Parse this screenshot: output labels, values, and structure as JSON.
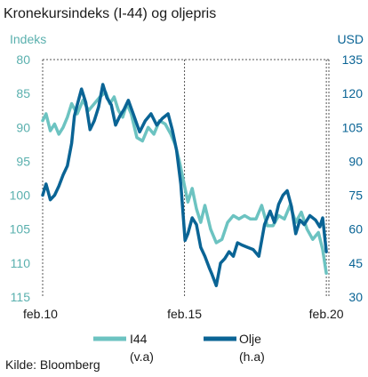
{
  "chart_data": {
    "type": "line",
    "title": "Kronekursindeks (I-44) og oljepris",
    "source": "Kilde: Bloomberg",
    "left_axis": {
      "label": "Indeks",
      "inverted": true,
      "range": [
        80,
        115
      ],
      "ticks": [
        "80",
        "85",
        "90",
        "95",
        "100",
        "105",
        "110",
        "115"
      ]
    },
    "right_axis": {
      "label": "USD",
      "range": [
        30,
        135
      ],
      "ticks": [
        "135",
        "120",
        "105",
        "90",
        "75",
        "60",
        "45",
        "30"
      ]
    },
    "x_axis": {
      "range": [
        2010.08,
        2020.17
      ],
      "ticks": [
        {
          "value": 2010.08,
          "label": "feb.10"
        },
        {
          "value": 2015.08,
          "label": "feb.15"
        },
        {
          "value": 2020.08,
          "label": "feb.20"
        }
      ]
    },
    "grid": "vertical dashed",
    "colors": {
      "i44": "#6cc3c1",
      "oil": "#0a6495",
      "left_axis": "#5ab0ae",
      "right_axis": "#0a6495"
    },
    "series": [
      {
        "name": "I44",
        "legend_label": "I44",
        "legend_note": "(v.a)",
        "axis": "left",
        "x": [
          2010.08,
          2010.2,
          2010.35,
          2010.5,
          2010.65,
          2010.8,
          2010.95,
          2011.1,
          2011.3,
          2011.5,
          2011.7,
          2011.9,
          2012.1,
          2012.3,
          2012.45,
          2012.6,
          2012.75,
          2012.9,
          2013.05,
          2013.2,
          2013.4,
          2013.6,
          2013.8,
          2014.0,
          2014.2,
          2014.4,
          2014.6,
          2014.75,
          2014.9,
          2015.05,
          2015.2,
          2015.35,
          2015.5,
          2015.65,
          2015.8,
          2016.0,
          2016.2,
          2016.4,
          2016.6,
          2016.8,
          2017.0,
          2017.2,
          2017.4,
          2017.6,
          2017.8,
          2018.0,
          2018.2,
          2018.4,
          2018.6,
          2018.8,
          2019.0,
          2019.2,
          2019.4,
          2019.6,
          2019.8,
          2019.95,
          2020.08
        ],
        "values": [
          89,
          88,
          90.5,
          89.5,
          91,
          90,
          88.5,
          86.5,
          88,
          86,
          87.5,
          86.5,
          85.5,
          84.8,
          86.5,
          85.5,
          87.5,
          88.5,
          86.5,
          88,
          91.5,
          92,
          90,
          91,
          89,
          89.5,
          91,
          92.5,
          95,
          98,
          101,
          99,
          102,
          104,
          101.5,
          105,
          107,
          106.5,
          104,
          103,
          103.5,
          103,
          103.5,
          103.5,
          101.5,
          104.5,
          104.5,
          103,
          103.5,
          101.5,
          104,
          102.5,
          105,
          106.5,
          105.5,
          108,
          111.5
        ]
      },
      {
        "name": "Olje",
        "legend_label": "Olje",
        "legend_note": "(h.a)",
        "axis": "right",
        "x": [
          2010.08,
          2010.2,
          2010.35,
          2010.5,
          2010.65,
          2010.8,
          2010.95,
          2011.1,
          2011.2,
          2011.3,
          2011.45,
          2011.6,
          2011.75,
          2011.9,
          2012.05,
          2012.2,
          2012.35,
          2012.5,
          2012.65,
          2012.8,
          2012.95,
          2013.1,
          2013.3,
          2013.5,
          2013.7,
          2013.9,
          2014.1,
          2014.3,
          2014.5,
          2014.65,
          2014.8,
          2014.95,
          2015.1,
          2015.2,
          2015.35,
          2015.5,
          2015.65,
          2015.8,
          2015.95,
          2016.05,
          2016.2,
          2016.35,
          2016.5,
          2016.65,
          2016.8,
          2016.95,
          2017.1,
          2017.3,
          2017.5,
          2017.7,
          2017.9,
          2018.1,
          2018.25,
          2018.4,
          2018.55,
          2018.7,
          2018.85,
          2019.0,
          2019.15,
          2019.3,
          2019.5,
          2019.7,
          2019.85,
          2019.95,
          2020.08
        ],
        "values": [
          75,
          80,
          73,
          75,
          79,
          84,
          88,
          98,
          110,
          115,
          122,
          116,
          104,
          108,
          114,
          124,
          118,
          115,
          106,
          110,
          113,
          117,
          110,
          103,
          108,
          111,
          106,
          109,
          111,
          104,
          95,
          80,
          55,
          58,
          65,
          62,
          52,
          48,
          43,
          40,
          35,
          45,
          47,
          50,
          48,
          54,
          53,
          52,
          51,
          48,
          62,
          68,
          63,
          71,
          75,
          77,
          70,
          58,
          64,
          62,
          66,
          64,
          61,
          65,
          50
        ]
      }
    ]
  }
}
